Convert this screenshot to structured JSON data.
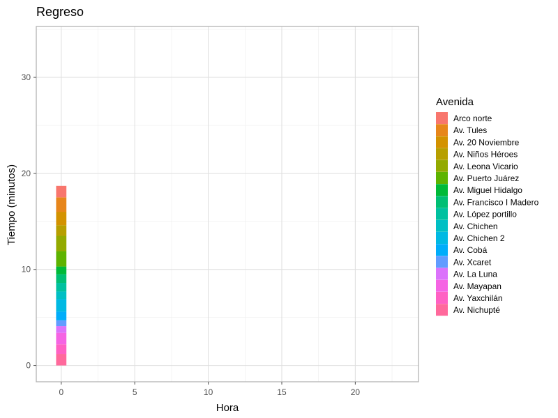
{
  "chart_data": {
    "type": "bar",
    "stacked": true,
    "title": "Regreso",
    "xlabel": "Hora",
    "ylabel": "Tiempo (minutos)",
    "xlim": [
      -1.7,
      24.3
    ],
    "ylim": [
      -1.7,
      35.3
    ],
    "x_ticks": [
      0,
      5,
      10,
      15,
      20
    ],
    "y_ticks": [
      0,
      10,
      20,
      30
    ],
    "grid": true,
    "legend": {
      "title": "Avenida",
      "placement": "right"
    },
    "x": [
      0
    ],
    "series": [
      {
        "name": "Arco norte",
        "color": "#F8766D",
        "values": [
          1.2
        ]
      },
      {
        "name": "Av. Tules",
        "color": "#E7861B",
        "values": [
          1.5
        ]
      },
      {
        "name": "Av. 20 Noviembre",
        "color": "#D39200",
        "values": [
          1.4
        ]
      },
      {
        "name": "Av. Niños Héroes",
        "color": "#B79F00",
        "values": [
          1.1
        ]
      },
      {
        "name": "Av. Leona Vicario",
        "color": "#93AA00",
        "values": [
          1.6
        ]
      },
      {
        "name": "Av. Puerto Juárez",
        "color": "#5EB300",
        "values": [
          1.6
        ]
      },
      {
        "name": "Av. Miguel Hidalgo",
        "color": "#00BA38",
        "values": [
          0.8
        ]
      },
      {
        "name": "Av. Francisco I Madero",
        "color": "#00BF74",
        "values": [
          0.9
        ]
      },
      {
        "name": "Av. López portillo",
        "color": "#00C19F",
        "values": [
          0.9
        ]
      },
      {
        "name": "Av. Chichen",
        "color": "#00BFC4",
        "values": [
          0.8
        ]
      },
      {
        "name": "Av. Chichen 2",
        "color": "#00B9E3",
        "values": [
          1.3
        ]
      },
      {
        "name": "Av. Cobá",
        "color": "#00ADFA",
        "values": [
          0.9
        ]
      },
      {
        "name": "Av. Xcaret",
        "color": "#619CFF",
        "values": [
          0.6
        ]
      },
      {
        "name": "Av. La Luna",
        "color": "#DB72FB",
        "values": [
          0.7
        ]
      },
      {
        "name": "Av. Mayapan",
        "color": "#F564E3",
        "values": [
          1.2
        ]
      },
      {
        "name": "Av. Yaxchilán",
        "color": "#FF61C3",
        "values": [
          1.0
        ]
      },
      {
        "name": "Av. Nichupté",
        "color": "#FF699C",
        "values": [
          1.2
        ]
      }
    ]
  }
}
